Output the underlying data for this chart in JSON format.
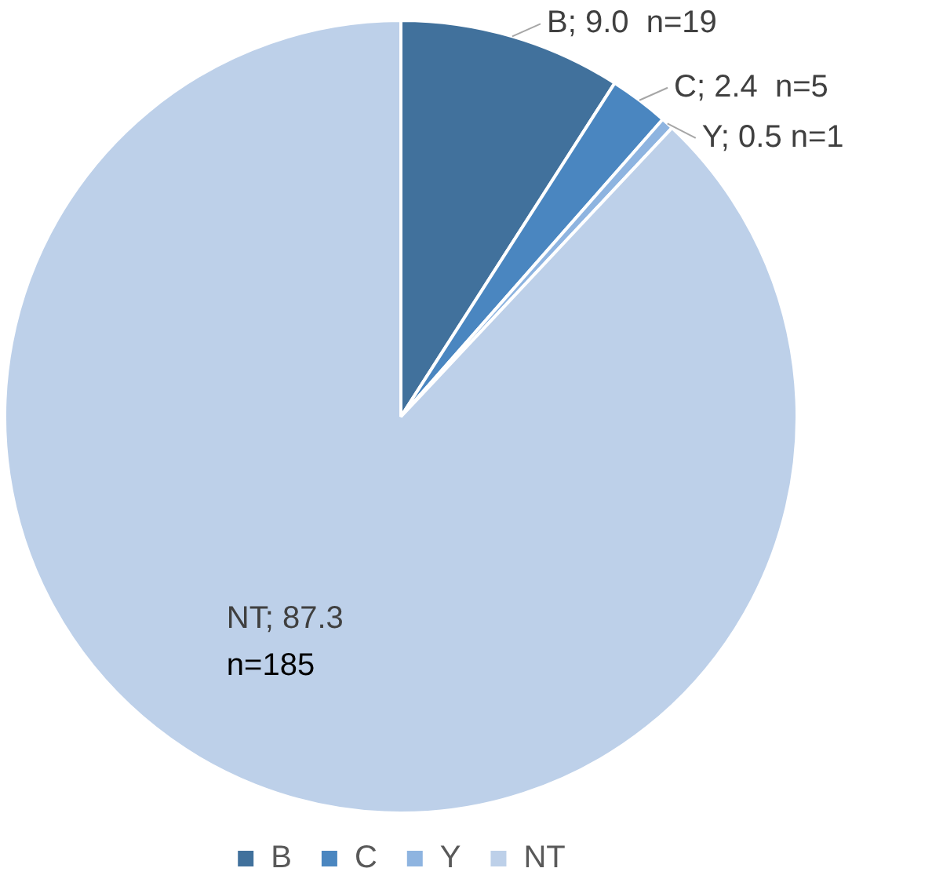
{
  "chart_data": {
    "type": "pie",
    "categories": [
      "B",
      "C",
      "Y",
      "NT"
    ],
    "values": [
      9.0,
      2.4,
      0.5,
      87.3
    ],
    "colors": [
      "#41719c",
      "#4a86c0",
      "#8eb4e0",
      "#bdd0e9"
    ],
    "value_labels": [
      "B; 9.0  n=19",
      "C; 2.4  n=5",
      "Y; 0.5 n=1",
      "NT; 87.3\nn=185"
    ],
    "legend": "bottom"
  }
}
